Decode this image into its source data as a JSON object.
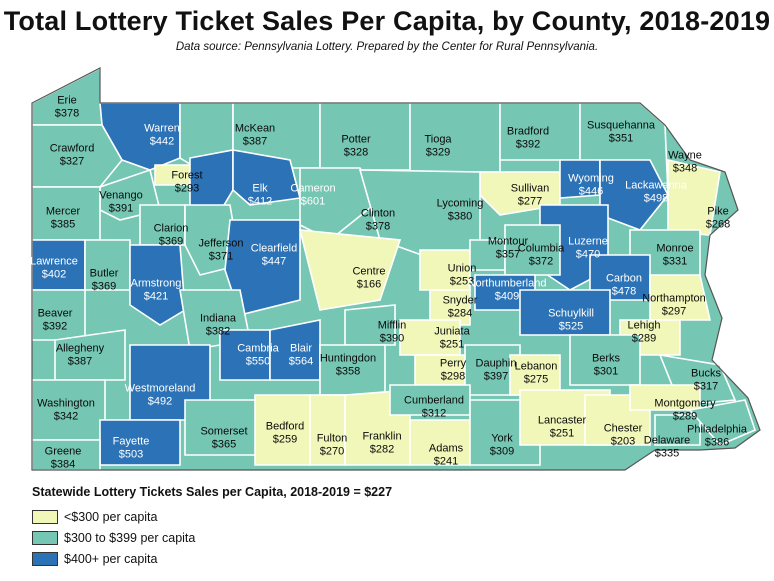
{
  "title": "Total Lottery Ticket Sales Per Capita, by County, 2018-2019",
  "subtitle": "Data source: Pennsylvania Lottery. Prepared by the Center for Rural Pennsylvania.",
  "statewide": "Statewide Lottery Tickets Sales per Capita, 2018-2019 = $227",
  "colors": {
    "low": "#f1f7b9",
    "mid": "#75c6b3",
    "high": "#2b72b7",
    "border": "#ffffff",
    "outline": "#555555"
  },
  "legend": [
    {
      "label": "<$300 per capita",
      "cls": "low"
    },
    {
      "label": "$300 to $399 per capita",
      "cls": "mid"
    },
    {
      "label": "$400+ per capita",
      "cls": "high"
    }
  ],
  "counties": [
    {
      "name": "Erie",
      "value": "$378",
      "cls": "mid"
    },
    {
      "name": "Warren",
      "value": "$442",
      "cls": "high"
    },
    {
      "name": "McKean",
      "value": "$387",
      "cls": "mid"
    },
    {
      "name": "Potter",
      "value": "$328",
      "cls": "mid"
    },
    {
      "name": "Tioga",
      "value": "$329",
      "cls": "mid"
    },
    {
      "name": "Bradford",
      "value": "$392",
      "cls": "mid"
    },
    {
      "name": "Susquehanna",
      "value": "$351",
      "cls": "mid"
    },
    {
      "name": "Wayne",
      "value": "$348",
      "cls": "mid"
    },
    {
      "name": "Crawford",
      "value": "$327",
      "cls": "mid"
    },
    {
      "name": "Forest",
      "value": "$293",
      "cls": "low"
    },
    {
      "name": "Elk",
      "value": "$412",
      "cls": "high"
    },
    {
      "name": "Cameron",
      "value": "$601",
      "cls": "high"
    },
    {
      "name": "Sullivan",
      "value": "$277",
      "cls": "low"
    },
    {
      "name": "Wyoming",
      "value": "$446",
      "cls": "high"
    },
    {
      "name": "Lackawanna",
      "value": "$498",
      "cls": "high"
    },
    {
      "name": "Pike",
      "value": "$268",
      "cls": "low"
    },
    {
      "name": "Venango",
      "value": "$391",
      "cls": "mid"
    },
    {
      "name": "Mercer",
      "value": "$385",
      "cls": "mid"
    },
    {
      "name": "Clarion",
      "value": "$369",
      "cls": "mid"
    },
    {
      "name": "Jefferson",
      "value": "$371",
      "cls": "mid"
    },
    {
      "name": "Clinton",
      "value": "$378",
      "cls": "mid"
    },
    {
      "name": "Lycoming",
      "value": "$380",
      "cls": "mid"
    },
    {
      "name": "Luzerne",
      "value": "$470",
      "cls": "high"
    },
    {
      "name": "Monroe",
      "value": "$331",
      "cls": "mid"
    },
    {
      "name": "Lawrence",
      "value": "$402",
      "cls": "high"
    },
    {
      "name": "Butler",
      "value": "$369",
      "cls": "mid"
    },
    {
      "name": "Armstrong",
      "value": "$421",
      "cls": "high"
    },
    {
      "name": "Clearfield",
      "value": "$447",
      "cls": "high"
    },
    {
      "name": "Centre",
      "value": "$166",
      "cls": "low"
    },
    {
      "name": "Union",
      "value": "$253",
      "cls": "low"
    },
    {
      "name": "Montour",
      "value": "$357",
      "cls": "mid"
    },
    {
      "name": "Columbia",
      "value": "$372",
      "cls": "mid"
    },
    {
      "name": "Carbon",
      "value": "$478",
      "cls": "high"
    },
    {
      "name": "Northampton",
      "value": "$297",
      "cls": "low"
    },
    {
      "name": "Beaver",
      "value": "$392",
      "cls": "mid"
    },
    {
      "name": "Indiana",
      "value": "$382",
      "cls": "mid"
    },
    {
      "name": "Northumberland",
      "value": "$409",
      "cls": "high"
    },
    {
      "name": "Snyder",
      "value": "$284",
      "cls": "low"
    },
    {
      "name": "Schuylkill",
      "value": "$525",
      "cls": "high"
    },
    {
      "name": "Lehigh",
      "value": "$289",
      "cls": "low"
    },
    {
      "name": "Allegheny",
      "value": "$387",
      "cls": "mid"
    },
    {
      "name": "Mifflin",
      "value": "$390",
      "cls": "mid"
    },
    {
      "name": "Juniata",
      "value": "$251",
      "cls": "low"
    },
    {
      "name": "Cambria",
      "value": "$550",
      "cls": "high"
    },
    {
      "name": "Blair",
      "value": "$564",
      "cls": "high"
    },
    {
      "name": "Huntingdon",
      "value": "$358",
      "cls": "mid"
    },
    {
      "name": "Perry",
      "value": "$298",
      "cls": "low"
    },
    {
      "name": "Dauphin",
      "value": "$397",
      "cls": "mid"
    },
    {
      "name": "Lebanon",
      "value": "$275",
      "cls": "low"
    },
    {
      "name": "Berks",
      "value": "$301",
      "cls": "mid"
    },
    {
      "name": "Bucks",
      "value": "$317",
      "cls": "mid"
    },
    {
      "name": "Westmoreland",
      "value": "$492",
      "cls": "high"
    },
    {
      "name": "Washington",
      "value": "$342",
      "cls": "mid"
    },
    {
      "name": "Somerset",
      "value": "$365",
      "cls": "mid"
    },
    {
      "name": "Bedford",
      "value": "$259",
      "cls": "low"
    },
    {
      "name": "Fulton",
      "value": "$270",
      "cls": "low"
    },
    {
      "name": "Franklin",
      "value": "$282",
      "cls": "low"
    },
    {
      "name": "Cumberland",
      "value": "$312",
      "cls": "mid"
    },
    {
      "name": "Adams",
      "value": "$241",
      "cls": "low"
    },
    {
      "name": "York",
      "value": "$309",
      "cls": "mid"
    },
    {
      "name": "Lancaster",
      "value": "$251",
      "cls": "low"
    },
    {
      "name": "Chester",
      "value": "$203",
      "cls": "low"
    },
    {
      "name": "Montgomery",
      "value": "$289",
      "cls": "low"
    },
    {
      "name": "Delaware",
      "value": "$335",
      "cls": "mid"
    },
    {
      "name": "Philadelphia",
      "value": "$386",
      "cls": "mid"
    },
    {
      "name": "Fayette",
      "value": "$503",
      "cls": "high"
    },
    {
      "name": "Greene",
      "value": "$384",
      "cls": "mid"
    }
  ]
}
